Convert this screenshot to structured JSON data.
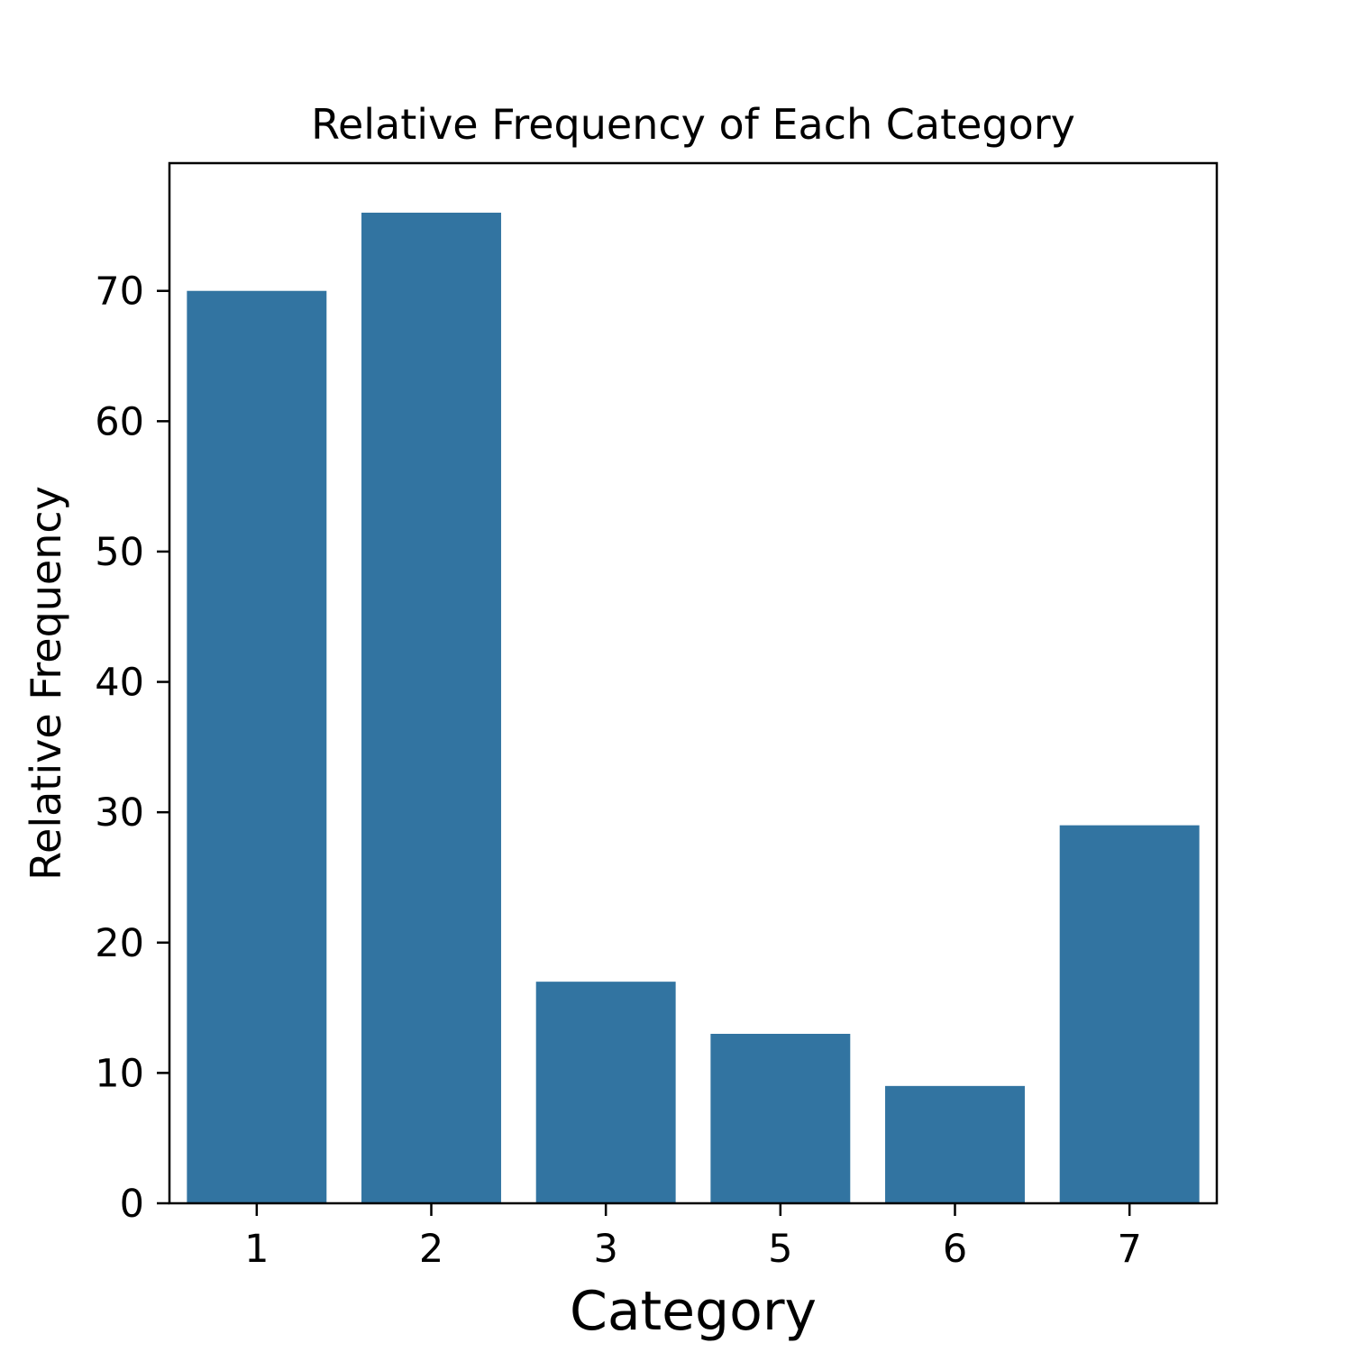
{
  "chart_data": {
    "type": "bar",
    "title": "Relative Frequency of Each Category",
    "xlabel": "Category",
    "ylabel": "Relative Frequency",
    "categories": [
      "1",
      "2",
      "3",
      "5",
      "6",
      "7"
    ],
    "values": [
      70,
      76,
      17,
      13,
      9,
      29
    ],
    "ylim": [
      0,
      79.8
    ],
    "yticks": [
      0,
      10,
      20,
      30,
      40,
      50,
      60,
      70
    ],
    "grid": false,
    "bar_color": "#3274a1"
  }
}
